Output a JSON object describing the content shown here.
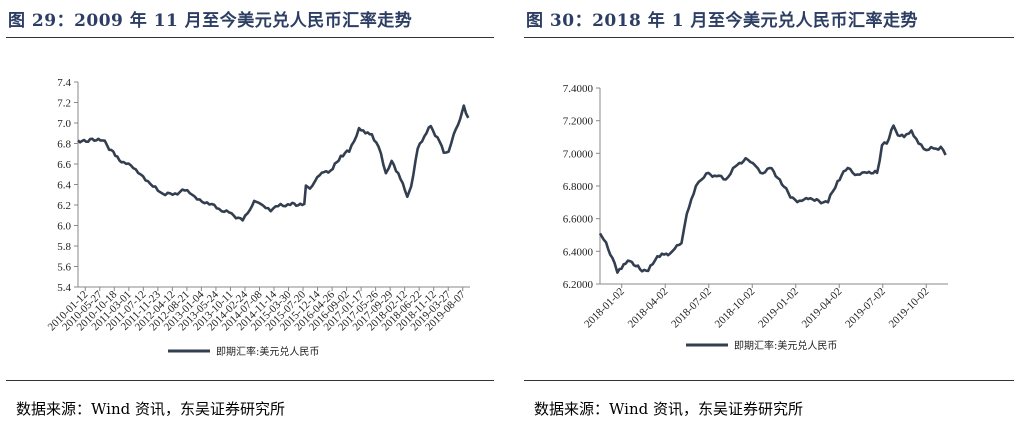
{
  "left": {
    "title": "图 29：2009 年 11 月至今美元兑人民币汇率走势",
    "source": "数据来源：Wind 资讯，东吴证券研究所"
  },
  "right": {
    "title": "图 30：2018 年 1 月至今美元兑人民币汇率走势",
    "source": "数据来源：Wind 资讯，东吴证券研究所"
  },
  "colors": {
    "line": "#333f50",
    "axis": "#888888",
    "title": "#2c3e63"
  },
  "chart_data": [
    {
      "type": "line",
      "title": "",
      "xlabel": "",
      "ylabel": "",
      "ylim": [
        5.4,
        7.4
      ],
      "y_ticks": [
        "5.4",
        "5.6",
        "5.8",
        "6.0",
        "6.2",
        "6.4",
        "6.6",
        "6.8",
        "7.0",
        "7.2",
        "7.4"
      ],
      "x_tick_labels": [
        "2010-01-12",
        "2010-05-27",
        "2010-10-18",
        "2011-03-01",
        "2011-07-12",
        "2011-11-23",
        "2012-04-12",
        "2012-08-21",
        "2013-01-04",
        "2013-05-24",
        "2013-10-11",
        "2014-02-24",
        "2014-07-08",
        "2014-11-14",
        "2015-03-30",
        "2015-07-20",
        "2015-12-14",
        "2016-04-26",
        "2016-09-02",
        "2017-01-17",
        "2017-05-26",
        "2017-09-29",
        "2018-02-12",
        "2018-06-22",
        "2018-11-12",
        "2019-03-27",
        "2019-08-07"
      ],
      "grid": false,
      "legend": "bottom",
      "series": [
        {
          "name": "即期汇率:美元兑人民币",
          "x": [
            "2009-11-02",
            "2010-06-18",
            "2010-08-01",
            "2010-10-15",
            "2011-01-01",
            "2011-04-01",
            "2011-07-01",
            "2011-10-01",
            "2012-01-01",
            "2012-04-01",
            "2012-07-01",
            "2012-10-01",
            "2013-01-01",
            "2013-04-01",
            "2013-07-01",
            "2013-10-01",
            "2014-01-14",
            "2014-03-01",
            "2014-05-01",
            "2014-07-01",
            "2014-10-01",
            "2015-01-01",
            "2015-04-01",
            "2015-08-10",
            "2015-08-25",
            "2015-10-01",
            "2015-12-31",
            "2016-03-01",
            "2016-05-01",
            "2016-07-15",
            "2016-10-01",
            "2016-12-31",
            "2017-03-01",
            "2017-05-01",
            "2017-07-01",
            "2017-09-08",
            "2017-11-01",
            "2018-01-01",
            "2018-03-26",
            "2018-05-01",
            "2018-07-01",
            "2018-09-01",
            "2018-10-31",
            "2019-01-01",
            "2019-03-01",
            "2019-04-15",
            "2019-06-01",
            "2019-08-01",
            "2019-09-03",
            "2019-10-15"
          ],
          "values": [
            6.83,
            6.83,
            6.78,
            6.68,
            6.62,
            6.56,
            6.48,
            6.38,
            6.31,
            6.3,
            6.35,
            6.3,
            6.23,
            6.21,
            6.14,
            6.12,
            6.05,
            6.12,
            6.24,
            6.21,
            6.14,
            6.21,
            6.2,
            6.21,
            6.39,
            6.36,
            6.49,
            6.53,
            6.55,
            6.68,
            6.72,
            6.95,
            6.9,
            6.89,
            6.77,
            6.51,
            6.63,
            6.51,
            6.28,
            6.38,
            6.75,
            6.87,
            6.97,
            6.86,
            6.71,
            6.72,
            6.89,
            7.04,
            7.17,
            7.05
          ]
        }
      ]
    },
    {
      "type": "line",
      "title": "",
      "xlabel": "",
      "ylabel": "",
      "ylim": [
        6.2,
        7.4
      ],
      "y_ticks": [
        "6.2000",
        "6.4000",
        "6.6000",
        "6.8000",
        "7.0000",
        "7.2000",
        "7.4000"
      ],
      "x_tick_labels": [
        "2018-01-02",
        "2018-04-02",
        "2018-07-02",
        "2018-10-02",
        "2019-01-02",
        "2019-04-02",
        "2019-07-02",
        "2019-10-02"
      ],
      "grid": false,
      "legend": "bottom",
      "series": [
        {
          "name": "即期汇率:美元兑人民币",
          "x": [
            "2018-01-02",
            "2018-01-10",
            "2018-02-01",
            "2018-02-07",
            "2018-02-20",
            "2018-03-05",
            "2018-03-26",
            "2018-04-12",
            "2018-05-01",
            "2018-05-15",
            "2018-06-01",
            "2018-06-20",
            "2018-07-01",
            "2018-07-20",
            "2018-08-01",
            "2018-08-15",
            "2018-09-01",
            "2018-09-20",
            "2018-10-10",
            "2018-10-31",
            "2018-11-15",
            "2018-12-01",
            "2018-12-20",
            "2019-01-10",
            "2019-02-01",
            "2019-02-20",
            "2019-03-10",
            "2019-04-01",
            "2019-04-20",
            "2019-05-10",
            "2019-05-31",
            "2019-06-20",
            "2019-07-10",
            "2019-07-31",
            "2019-08-10",
            "2019-08-20",
            "2019-09-03",
            "2019-09-12",
            "2019-09-25",
            "2019-10-10",
            "2019-10-25",
            "2019-11-10",
            "2019-11-25",
            "2019-12-10",
            "2019-12-20"
          ],
          "values": [
            6.51,
            6.47,
            6.33,
            6.27,
            6.32,
            6.34,
            6.29,
            6.28,
            6.37,
            6.38,
            6.4,
            6.45,
            6.63,
            6.8,
            6.84,
            6.88,
            6.86,
            6.84,
            6.92,
            6.97,
            6.94,
            6.88,
            6.91,
            6.84,
            6.73,
            6.71,
            6.72,
            6.71,
            6.7,
            6.83,
            6.91,
            6.87,
            6.88,
            6.88,
            7.05,
            7.06,
            7.17,
            7.11,
            7.1,
            7.14,
            7.06,
            7.02,
            7.03,
            7.04,
            6.99
          ]
        }
      ]
    }
  ]
}
